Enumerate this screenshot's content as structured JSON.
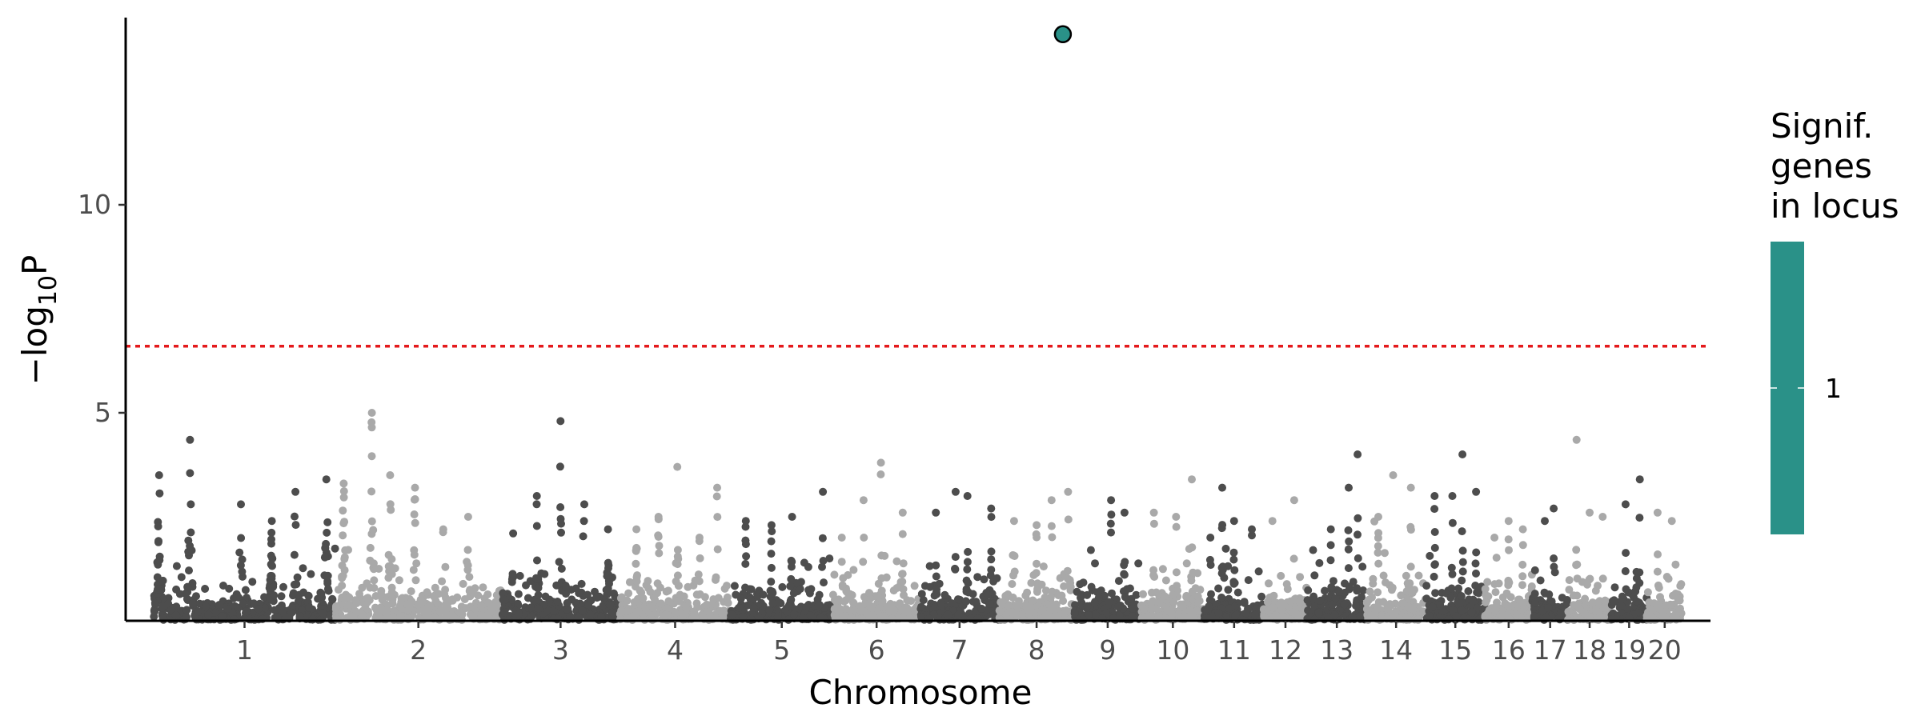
{
  "chart_data": {
    "type": "scatter",
    "subtype": "manhattan",
    "xlabel": "Chromosome",
    "ylabel": "−log10P",
    "ylabel_parts": {
      "prefix": "−log",
      "sub": "10",
      "suffix": "P"
    },
    "ylim": [
      0,
      14.5
    ],
    "yticks": [
      5,
      10
    ],
    "ytick_labels": [
      "5",
      "10"
    ],
    "grid": false,
    "legend_position": "right",
    "significance_threshold": 6.6,
    "colors": {
      "dark": "#4d4d4d",
      "light": "#a9a9a9",
      "threshold": "#e41a1c",
      "highlight": "#2a9188",
      "highlight_outline": "#000000"
    },
    "chromosomes": [
      {
        "label": "1",
        "length": 230,
        "color": "dark",
        "peaks": [
          [
            0.03,
            3.5
          ],
          [
            0.2,
            4.35
          ],
          [
            0.48,
            2.8
          ],
          [
            0.65,
            2.4
          ],
          [
            0.78,
            3.1
          ],
          [
            0.95,
            3.4
          ]
        ]
      },
      {
        "label": "2",
        "length": 210,
        "color": "light",
        "peaks": [
          [
            0.05,
            3.3
          ],
          [
            0.22,
            5.0
          ],
          [
            0.33,
            3.5
          ],
          [
            0.48,
            3.2
          ],
          [
            0.65,
            2.2
          ],
          [
            0.8,
            2.5
          ]
        ]
      },
      {
        "label": "3",
        "length": 150,
        "color": "dark",
        "peaks": [
          [
            0.1,
            2.1
          ],
          [
            0.3,
            3.0
          ],
          [
            0.5,
            4.8
          ],
          [
            0.7,
            2.8
          ],
          [
            0.9,
            2.2
          ]
        ]
      },
      {
        "label": "4",
        "length": 140,
        "color": "light",
        "peaks": [
          [
            0.15,
            2.2
          ],
          [
            0.35,
            2.5
          ],
          [
            0.52,
            3.7
          ],
          [
            0.72,
            2.0
          ],
          [
            0.88,
            3.2
          ]
        ]
      },
      {
        "label": "5",
        "length": 130,
        "color": "dark",
        "peaks": [
          [
            0.15,
            2.4
          ],
          [
            0.4,
            2.3
          ],
          [
            0.6,
            2.5
          ],
          [
            0.9,
            3.1
          ]
        ]
      },
      {
        "label": "6",
        "length": 110,
        "color": "light",
        "peaks": [
          [
            0.1,
            2.0
          ],
          [
            0.35,
            2.9
          ],
          [
            0.55,
            3.8
          ],
          [
            0.8,
            2.6
          ]
        ]
      },
      {
        "label": "7",
        "length": 100,
        "color": "dark",
        "peaks": [
          [
            0.2,
            2.6
          ],
          [
            0.45,
            3.1
          ],
          [
            0.6,
            3.0
          ],
          [
            0.9,
            2.7
          ]
        ]
      },
      {
        "label": "8",
        "length": 95,
        "color": "light",
        "peaks": [
          [
            0.2,
            2.4
          ],
          [
            0.5,
            2.3
          ],
          [
            0.7,
            2.9
          ],
          [
            0.92,
            3.1
          ]
        ]
      },
      {
        "label": "9",
        "length": 85,
        "color": "dark",
        "peaks": [
          [
            0.25,
            1.7
          ],
          [
            0.55,
            2.9
          ],
          [
            0.75,
            2.6
          ]
        ]
      },
      {
        "label": "10",
        "length": 80,
        "color": "light",
        "peaks": [
          [
            0.2,
            2.6
          ],
          [
            0.55,
            2.5
          ],
          [
            0.8,
            3.4
          ]
        ]
      },
      {
        "label": "11",
        "length": 75,
        "color": "dark",
        "peaks": [
          [
            0.1,
            2.0
          ],
          [
            0.3,
            3.2
          ],
          [
            0.5,
            2.4
          ],
          [
            0.8,
            2.2
          ]
        ]
      },
      {
        "label": "12",
        "length": 55,
        "color": "light",
        "peaks": [
          [
            0.2,
            2.4
          ],
          [
            0.7,
            2.9
          ]
        ]
      },
      {
        "label": "13",
        "length": 75,
        "color": "dark",
        "peaks": [
          [
            0.1,
            1.7
          ],
          [
            0.4,
            2.2
          ],
          [
            0.7,
            3.2
          ],
          [
            0.85,
            4.0
          ]
        ]
      },
      {
        "label": "14",
        "length": 75,
        "color": "light",
        "peaks": [
          [
            0.2,
            2.5
          ],
          [
            0.45,
            3.5
          ],
          [
            0.75,
            3.2
          ]
        ]
      },
      {
        "label": "15",
        "length": 75,
        "color": "dark",
        "peaks": [
          [
            0.15,
            3.0
          ],
          [
            0.45,
            3.0
          ],
          [
            0.62,
            4.0
          ],
          [
            0.85,
            3.1
          ]
        ]
      },
      {
        "label": "16",
        "length": 60,
        "color": "light",
        "peaks": [
          [
            0.2,
            2.0
          ],
          [
            0.5,
            2.4
          ],
          [
            0.8,
            2.2
          ]
        ]
      },
      {
        "label": "17",
        "length": 45,
        "color": "dark",
        "peaks": [
          [
            0.35,
            2.4
          ],
          [
            0.6,
            2.7
          ]
        ]
      },
      {
        "label": "18",
        "length": 55,
        "color": "light",
        "peaks": [
          [
            0.2,
            4.35
          ],
          [
            0.5,
            2.6
          ],
          [
            0.8,
            2.5
          ]
        ]
      },
      {
        "label": "19",
        "length": 45,
        "color": "dark",
        "peaks": [
          [
            0.4,
            2.8
          ],
          [
            0.8,
            3.4
          ]
        ]
      },
      {
        "label": "20",
        "length": 45,
        "color": "light",
        "peaks": [
          [
            0.3,
            2.6
          ],
          [
            0.7,
            2.4
          ]
        ]
      }
    ],
    "highlighted_point": {
      "chromosome": "8",
      "position_fraction": 0.85,
      "value": 14.1
    }
  },
  "legend": {
    "title_lines": [
      "Signif.",
      "genes",
      "in locus"
    ],
    "tick_label": "1",
    "color": "#2a9188"
  }
}
